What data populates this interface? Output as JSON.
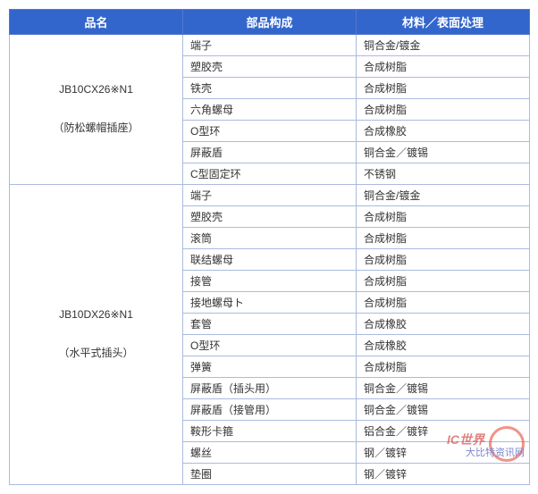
{
  "headers": {
    "col1": "品名",
    "col2": "部品构成",
    "col3": "材料／表面处理"
  },
  "products": [
    {
      "name_line1": "JB10CX26※N1",
      "name_line2": "（防松螺帽插座）",
      "rows": [
        {
          "component": "端子",
          "material": "铜合金/镀金"
        },
        {
          "component": "塑胶壳",
          "material": "合成树脂"
        },
        {
          "component": "铁壳",
          "material": "合成树脂"
        },
        {
          "component": "六角螺母",
          "material": "合成树脂"
        },
        {
          "component": "O型环",
          "material": "合成橡胶"
        },
        {
          "component": "屏蔽盾",
          "material": "铜合金／镀锡"
        },
        {
          "component": "C型固定环",
          "material": "不锈钢"
        }
      ]
    },
    {
      "name_line1": "JB10DX26※N1",
      "name_line2": "（水平式插头）",
      "rows": [
        {
          "component": "端子",
          "material": "铜合金/镀金"
        },
        {
          "component": "塑胶壳",
          "material": "合成树脂"
        },
        {
          "component": "滚筒",
          "material": "合成树脂"
        },
        {
          "component": "联结螺母",
          "material": "合成树脂"
        },
        {
          "component": "接管",
          "material": "合成树脂"
        },
        {
          "component": "接地螺母ト",
          "material": "合成树脂"
        },
        {
          "component": "套管",
          "material": "合成橡胶"
        },
        {
          "component": "O型环",
          "material": "合成橡胶"
        },
        {
          "component": "弹簧",
          "material": "合成树脂"
        },
        {
          "component": "屏蔽盾（插头用）",
          "material": "铜合金／镀锡"
        },
        {
          "component": "屏蔽盾（接管用）",
          "material": "铜合金／镀锡"
        },
        {
          "component": "鞍形卡箍",
          "material": "铝合金／镀锌"
        },
        {
          "component": "螺丝",
          "material": "钢／镀锌"
        },
        {
          "component": "垫圈",
          "material": "钢／镀锌"
        }
      ]
    }
  ],
  "watermark": {
    "text1": "IC世界",
    "text2": "大比特资讯网"
  },
  "styles": {
    "header_bg": "#3366cc",
    "header_fg": "#ffffff",
    "border_color": "#aabbdd",
    "text_color": "#333333"
  }
}
